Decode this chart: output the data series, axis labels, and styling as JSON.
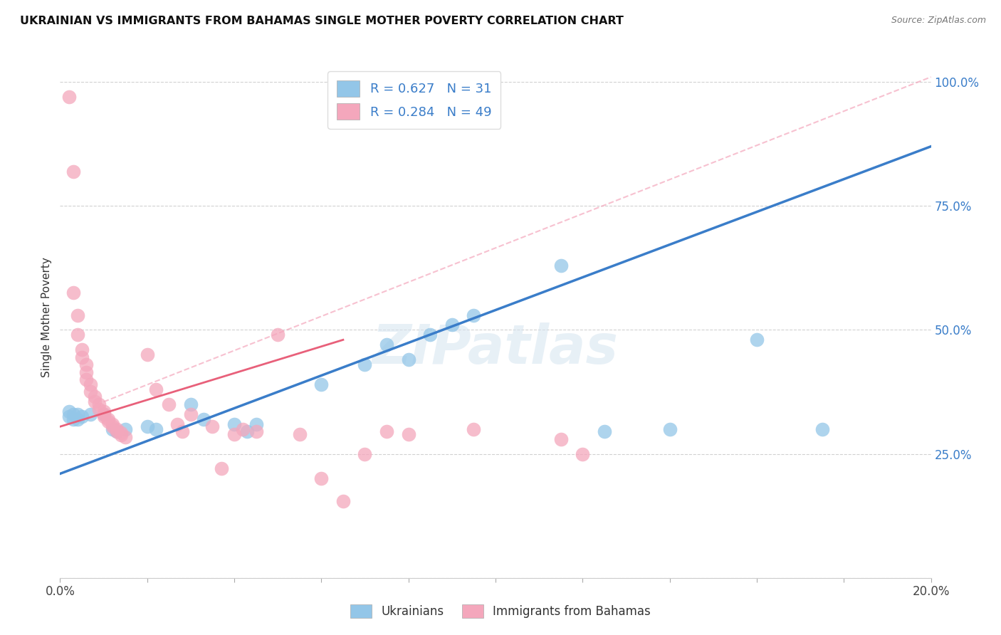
{
  "title": "UKRAINIAN VS IMMIGRANTS FROM BAHAMAS SINGLE MOTHER POVERTY CORRELATION CHART",
  "source": "Source: ZipAtlas.com",
  "ylabel": "Single Mother Poverty",
  "xlim": [
    0.0,
    0.2
  ],
  "ylim": [
    0.0,
    1.05
  ],
  "ytick_values": [
    0.0,
    0.25,
    0.5,
    0.75,
    1.0
  ],
  "xtick_values": [
    0.0,
    0.02,
    0.04,
    0.06,
    0.08,
    0.1,
    0.12,
    0.14,
    0.16,
    0.18,
    0.2
  ],
  "legend_label1": "Ukrainians",
  "legend_label2": "Immigrants from Bahamas",
  "R1": 0.627,
  "N1": 31,
  "R2": 0.284,
  "N2": 49,
  "color_blue": "#93c6e8",
  "color_pink": "#f4a7bc",
  "color_blue_line": "#3a7dc9",
  "color_pink_line": "#e8607a",
  "color_diag": "#f4a7bc",
  "watermark": "ZIPatlas",
  "blue_points": [
    [
      0.002,
      0.335
    ],
    [
      0.002,
      0.325
    ],
    [
      0.003,
      0.33
    ],
    [
      0.003,
      0.32
    ],
    [
      0.004,
      0.33
    ],
    [
      0.004,
      0.32
    ],
    [
      0.005,
      0.325
    ],
    [
      0.007,
      0.33
    ],
    [
      0.01,
      0.33
    ],
    [
      0.012,
      0.3
    ],
    [
      0.013,
      0.295
    ],
    [
      0.015,
      0.3
    ],
    [
      0.02,
      0.305
    ],
    [
      0.022,
      0.3
    ],
    [
      0.03,
      0.35
    ],
    [
      0.033,
      0.32
    ],
    [
      0.04,
      0.31
    ],
    [
      0.043,
      0.295
    ],
    [
      0.045,
      0.31
    ],
    [
      0.06,
      0.39
    ],
    [
      0.07,
      0.43
    ],
    [
      0.075,
      0.47
    ],
    [
      0.08,
      0.44
    ],
    [
      0.085,
      0.49
    ],
    [
      0.09,
      0.51
    ],
    [
      0.095,
      0.53
    ],
    [
      0.115,
      0.63
    ],
    [
      0.125,
      0.295
    ],
    [
      0.14,
      0.3
    ],
    [
      0.16,
      0.48
    ],
    [
      0.175,
      0.3
    ]
  ],
  "pink_points": [
    [
      0.002,
      0.97
    ],
    [
      0.003,
      0.82
    ],
    [
      0.003,
      0.575
    ],
    [
      0.004,
      0.53
    ],
    [
      0.004,
      0.49
    ],
    [
      0.005,
      0.46
    ],
    [
      0.005,
      0.445
    ],
    [
      0.006,
      0.43
    ],
    [
      0.006,
      0.415
    ],
    [
      0.006,
      0.4
    ],
    [
      0.007,
      0.39
    ],
    [
      0.007,
      0.375
    ],
    [
      0.008,
      0.365
    ],
    [
      0.008,
      0.355
    ],
    [
      0.009,
      0.35
    ],
    [
      0.009,
      0.34
    ],
    [
      0.01,
      0.335
    ],
    [
      0.01,
      0.33
    ],
    [
      0.01,
      0.325
    ],
    [
      0.011,
      0.32
    ],
    [
      0.011,
      0.315
    ],
    [
      0.012,
      0.31
    ],
    [
      0.012,
      0.305
    ],
    [
      0.013,
      0.3
    ],
    [
      0.013,
      0.296
    ],
    [
      0.014,
      0.292
    ],
    [
      0.014,
      0.288
    ],
    [
      0.015,
      0.284
    ],
    [
      0.02,
      0.45
    ],
    [
      0.022,
      0.38
    ],
    [
      0.025,
      0.35
    ],
    [
      0.027,
      0.31
    ],
    [
      0.028,
      0.295
    ],
    [
      0.03,
      0.33
    ],
    [
      0.035,
      0.305
    ],
    [
      0.037,
      0.22
    ],
    [
      0.04,
      0.29
    ],
    [
      0.042,
      0.3
    ],
    [
      0.045,
      0.295
    ],
    [
      0.05,
      0.49
    ],
    [
      0.055,
      0.29
    ],
    [
      0.06,
      0.2
    ],
    [
      0.065,
      0.155
    ],
    [
      0.07,
      0.25
    ],
    [
      0.075,
      0.295
    ],
    [
      0.08,
      0.29
    ],
    [
      0.095,
      0.3
    ],
    [
      0.115,
      0.28
    ],
    [
      0.12,
      0.25
    ]
  ],
  "blue_line_x": [
    0.0,
    0.2
  ],
  "blue_line_y": [
    0.21,
    0.87
  ],
  "pink_line_x": [
    0.0,
    0.065
  ],
  "pink_line_y": [
    0.305,
    0.48
  ],
  "diag_line_x": [
    0.01,
    0.2
  ],
  "diag_line_y": [
    0.355,
    1.01
  ]
}
